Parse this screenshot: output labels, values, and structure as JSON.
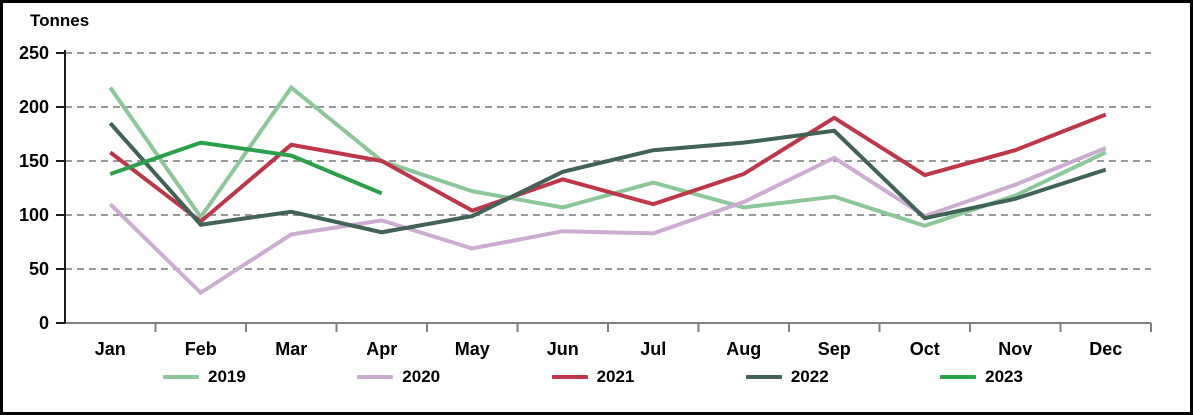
{
  "chart_data": {
    "type": "line",
    "title": "Tonnes",
    "ylabel": "Tonnes",
    "xlabel": "",
    "ylim": [
      0,
      250
    ],
    "yticks": [
      0,
      50,
      100,
      150,
      200,
      250
    ],
    "grid": "horizontal-dashed",
    "legend_position": "bottom",
    "categories": [
      "Jan",
      "Feb",
      "Mar",
      "Apr",
      "May",
      "Jun",
      "Jul",
      "Aug",
      "Sep",
      "Oct",
      "Nov",
      "Dec"
    ],
    "series": [
      {
        "name": "2019",
        "color": "#8CC799",
        "values": [
          218,
          98,
          218,
          150,
          122,
          107,
          130,
          107,
          117,
          90,
          118,
          158
        ]
      },
      {
        "name": "2020",
        "color": "#CCADD1",
        "values": [
          110,
          28,
          82,
          95,
          69,
          85,
          83,
          112,
          153,
          99,
          128,
          162
        ]
      },
      {
        "name": "2021",
        "color": "#BF3649",
        "values": [
          158,
          94,
          165,
          150,
          104,
          133,
          110,
          138,
          190,
          137,
          160,
          193
        ]
      },
      {
        "name": "2022",
        "color": "#406356",
        "values": [
          185,
          91,
          103,
          84,
          99,
          140,
          160,
          167,
          178,
          97,
          115,
          142
        ]
      },
      {
        "name": "2023",
        "color": "#2AA148",
        "values": [
          138,
          167,
          155,
          120,
          null,
          null,
          null,
          null,
          null,
          null,
          null,
          null
        ]
      }
    ],
    "colors": {
      "y_axis": "#1a1a1a",
      "x_axis": "#808080",
      "gridline": "#999999",
      "text": "#000000",
      "background": "#ffffff"
    }
  }
}
